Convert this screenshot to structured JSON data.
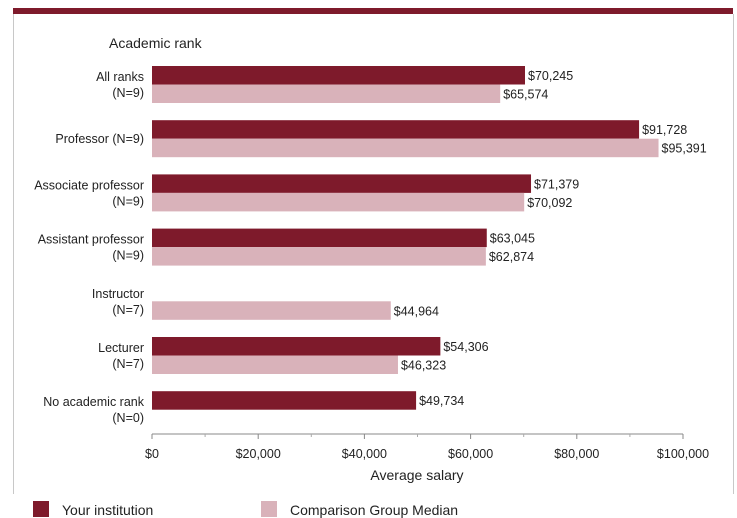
{
  "chart_data": {
    "type": "bar",
    "orientation": "horizontal",
    "title": "Academic rank",
    "xlabel": "Average salary",
    "ylabel": "",
    "xlim": [
      0,
      100000
    ],
    "xticks": [
      0,
      20000,
      40000,
      60000,
      80000,
      100000
    ],
    "xtick_labels": [
      "$0",
      "$20,000",
      "$40,000",
      "$60,000",
      "$80,000",
      "$100,000"
    ],
    "categories": [
      [
        "All ranks",
        "(N=9)"
      ],
      [
        "Professor (N=9)"
      ],
      [
        "Associate professor",
        "(N=9)"
      ],
      [
        "Assistant professor",
        "(N=9)"
      ],
      [
        "Instructor",
        "(N=7)"
      ],
      [
        "Lecturer",
        "(N=7)"
      ],
      [
        "No academic rank",
        "(N=0)"
      ]
    ],
    "series": [
      {
        "name": "Your institution",
        "color": "#7e1a2b",
        "values": [
          70245,
          91728,
          71379,
          63045,
          null,
          54306,
          49734
        ],
        "labels": [
          "$70,245",
          "$91,728",
          "$71,379",
          "$63,045",
          "",
          "$54,306",
          "$49,734"
        ]
      },
      {
        "name": "Comparison Group Median",
        "color": "#d9b2ba",
        "values": [
          65574,
          95391,
          70092,
          62874,
          44964,
          46323,
          null
        ],
        "labels": [
          "$65,574",
          "$95,391",
          "$70,092",
          "$62,874",
          "$44,964",
          "$46,323",
          ""
        ]
      }
    ],
    "legend": {
      "position": "bottom"
    },
    "grid": false
  }
}
